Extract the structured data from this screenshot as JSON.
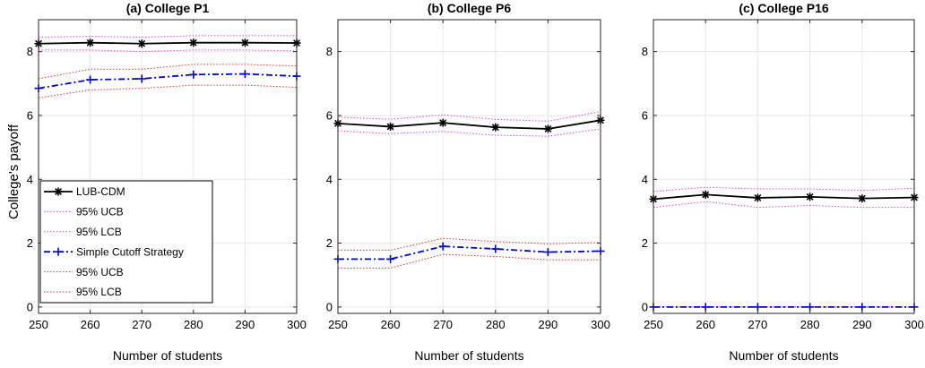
{
  "ylabel": "College's payoff",
  "colors": {
    "lub": "#000000",
    "lub_ci": "#e040e0",
    "cutoff": "#0000dd",
    "cutoff_ci": "#e03020",
    "grid": "#e6e6e6",
    "axis": "#262626"
  },
  "legend": {
    "entries": [
      {
        "label": "LUB-CDM",
        "style": "lub"
      },
      {
        "label": "95% UCB",
        "style": "lub_ci"
      },
      {
        "label": "95% LCB",
        "style": "lub_ci"
      },
      {
        "label": "Simple Cutoff Strategy",
        "style": "cutoff"
      },
      {
        "label": "95% UCB",
        "style": "cutoff_ci"
      },
      {
        "label": "95% LCB",
        "style": "cutoff_ci"
      }
    ]
  },
  "chart_data": [
    {
      "type": "line",
      "title": "(a) College P1",
      "xlabel": "Number of students",
      "ylabel": "College's payoff",
      "x": [
        250,
        260,
        270,
        280,
        290,
        300
      ],
      "xlim": [
        250,
        300
      ],
      "ylim": [
        -0.2,
        9
      ],
      "yticks": [
        0,
        2,
        4,
        6,
        8
      ],
      "grid": true,
      "legend": "bottom-left",
      "series": [
        {
          "name": "LUB-CDM",
          "values": [
            8.25,
            8.28,
            8.25,
            8.28,
            8.28,
            8.27
          ]
        },
        {
          "name": "95% UCB",
          "values": [
            8.45,
            8.48,
            8.45,
            8.5,
            8.5,
            8.5
          ]
        },
        {
          "name": "95% LCB",
          "values": [
            8.05,
            8.05,
            8.0,
            8.05,
            8.05,
            8.02
          ]
        },
        {
          "name": "Simple Cutoff Strategy",
          "values": [
            6.85,
            7.12,
            7.15,
            7.28,
            7.3,
            7.23
          ]
        },
        {
          "name": "95% UCB",
          "values": [
            7.15,
            7.45,
            7.45,
            7.6,
            7.6,
            7.55
          ]
        },
        {
          "name": "95% LCB",
          "values": [
            6.55,
            6.8,
            6.85,
            6.95,
            6.95,
            6.88
          ]
        }
      ]
    },
    {
      "type": "line",
      "title": "(b) College P6",
      "xlabel": "Number of students",
      "x": [
        250,
        260,
        270,
        280,
        290,
        300
      ],
      "xlim": [
        250,
        300
      ],
      "ylim": [
        -0.2,
        9
      ],
      "yticks": [
        0,
        2,
        4,
        6,
        8
      ],
      "grid": true,
      "series": [
        {
          "name": "LUB-CDM",
          "values": [
            5.75,
            5.65,
            5.77,
            5.63,
            5.58,
            5.85
          ]
        },
        {
          "name": "95% UCB",
          "values": [
            5.95,
            5.88,
            6.02,
            5.88,
            5.82,
            6.12
          ]
        },
        {
          "name": "95% LCB",
          "values": [
            5.52,
            5.43,
            5.5,
            5.38,
            5.35,
            5.58
          ]
        },
        {
          "name": "Simple Cutoff Strategy",
          "values": [
            1.5,
            1.5,
            1.9,
            1.82,
            1.72,
            1.75
          ]
        },
        {
          "name": "95% UCB",
          "values": [
            1.78,
            1.78,
            2.15,
            2.05,
            1.98,
            2.02
          ]
        },
        {
          "name": "95% LCB",
          "values": [
            1.22,
            1.22,
            1.65,
            1.58,
            1.48,
            1.48
          ]
        }
      ]
    },
    {
      "type": "line",
      "title": "(c) College P16",
      "xlabel": "Number of students",
      "x": [
        250,
        260,
        270,
        280,
        290,
        300
      ],
      "xlim": [
        250,
        300
      ],
      "ylim": [
        -0.2,
        9
      ],
      "yticks": [
        0,
        2,
        4,
        6,
        8
      ],
      "grid": true,
      "series": [
        {
          "name": "LUB-CDM",
          "values": [
            3.38,
            3.52,
            3.42,
            3.45,
            3.4,
            3.43
          ]
        },
        {
          "name": "95% UCB",
          "values": [
            3.62,
            3.75,
            3.7,
            3.7,
            3.65,
            3.72
          ]
        },
        {
          "name": "95% LCB",
          "values": [
            3.12,
            3.3,
            3.12,
            3.18,
            3.12,
            3.12
          ]
        },
        {
          "name": "Simple Cutoff Strategy",
          "values": [
            0,
            0,
            0,
            0,
            0,
            0
          ]
        },
        {
          "name": "95% UCB",
          "values": [
            0,
            0,
            0,
            0,
            0,
            0
          ]
        },
        {
          "name": "95% LCB",
          "values": [
            0,
            0,
            0,
            0,
            0,
            0
          ]
        }
      ]
    }
  ]
}
